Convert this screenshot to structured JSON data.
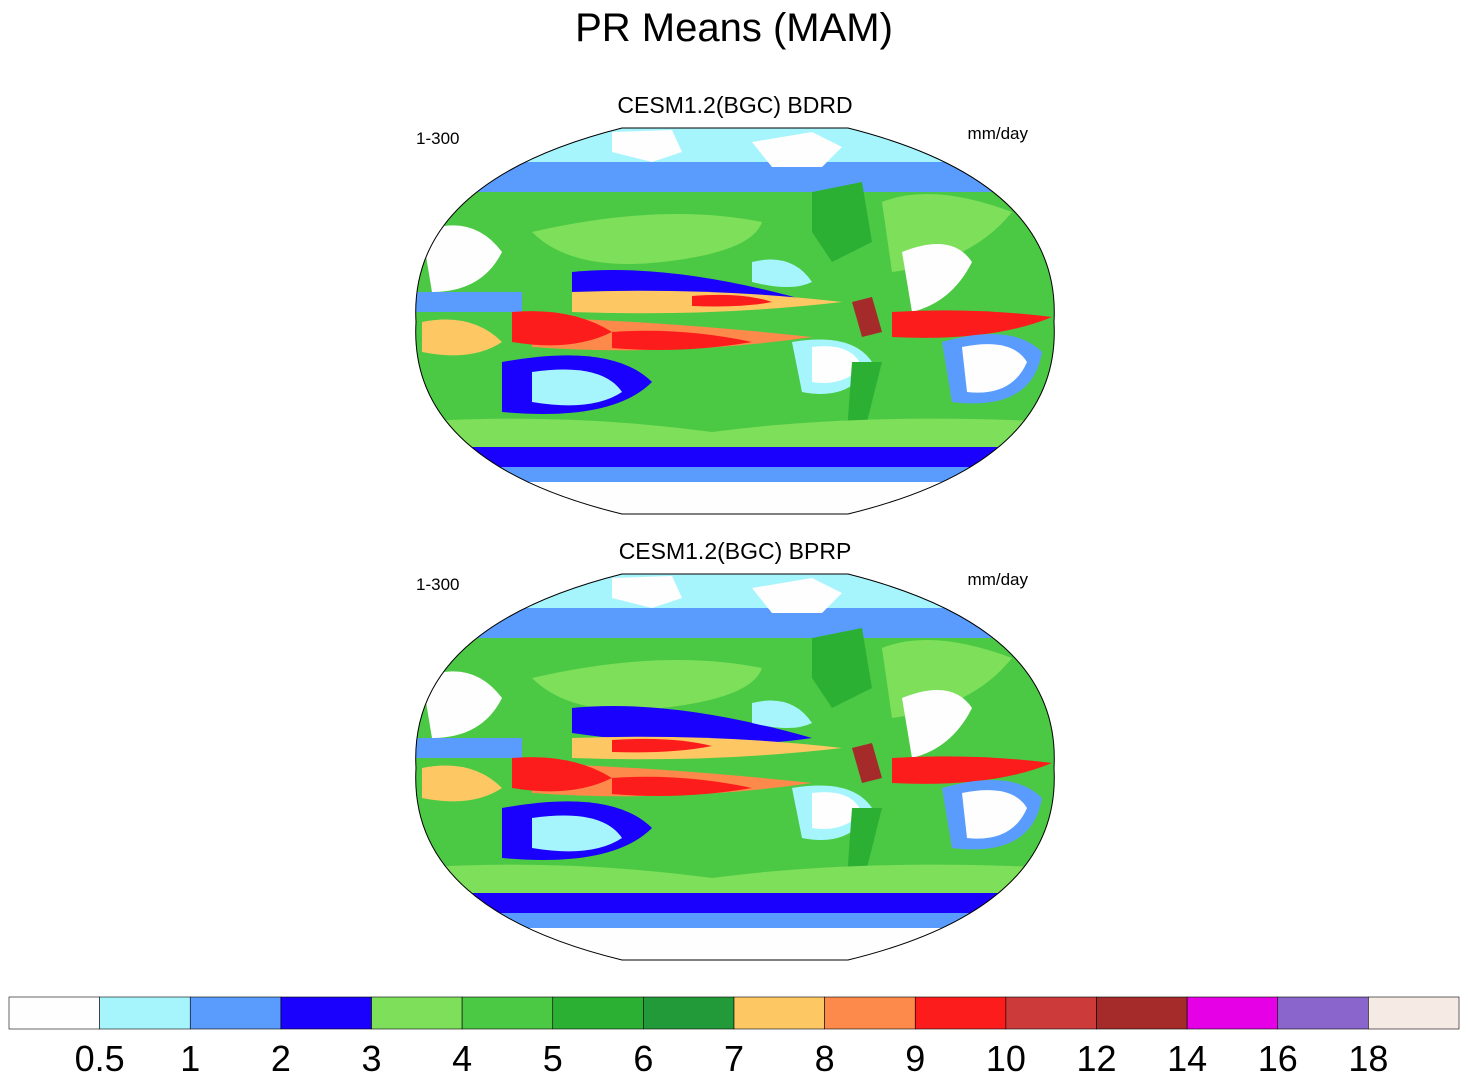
{
  "title": "PR Means (MAM)",
  "panels": [
    {
      "title": "CESM1.2(BGC) BDRD",
      "left_label": "1-300",
      "right_label": "mm/day"
    },
    {
      "title": "CESM1.2(BGC) BPRP",
      "left_label": "1-300",
      "right_label": "mm/day"
    }
  ],
  "colorbar": {
    "levels": [
      "0.5",
      "1",
      "2",
      "3",
      "4",
      "5",
      "6",
      "7",
      "8",
      "9",
      "10",
      "12",
      "14",
      "16",
      "18"
    ],
    "colors": [
      "#fefefe",
      "#a6f5fd",
      "#5a9cfd",
      "#1a00fd",
      "#7ddf5a",
      "#4cc944",
      "#2cb034",
      "#229a3a",
      "#fdc864",
      "#fd8a4a",
      "#fd1c1c",
      "#cc3a3a",
      "#a52a2a",
      "#e600e6",
      "#8a66cc",
      "#f5ebe4"
    ]
  }
}
